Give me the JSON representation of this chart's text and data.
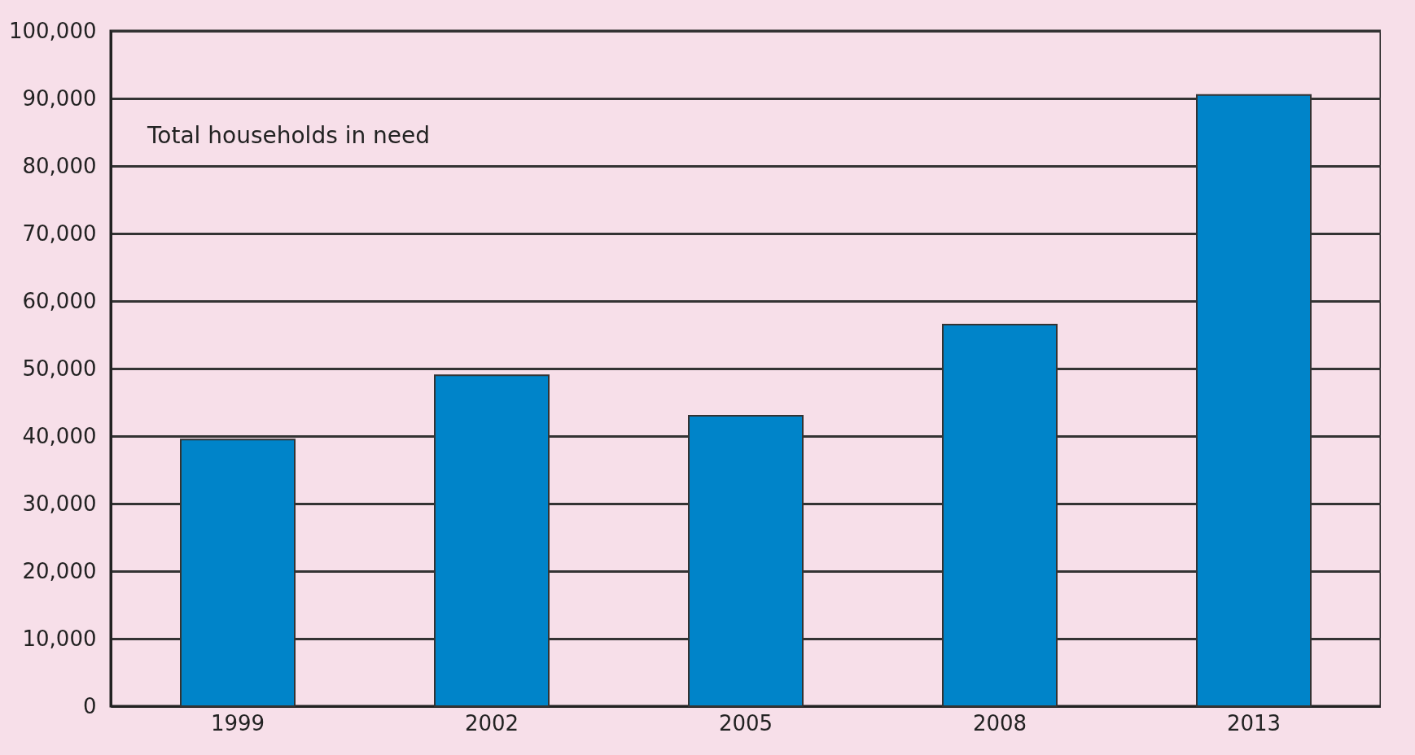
{
  "chart_data": {
    "type": "bar",
    "categories": [
      "1999",
      "2002",
      "2005",
      "2008",
      "2013"
    ],
    "values": [
      39500,
      49000,
      43000,
      56500,
      90500
    ],
    "color": "#0084c9",
    "ylim": [
      0,
      100000
    ],
    "yticks": [
      0,
      {
        "value": 10000,
        "label": "10,000"
      },
      {
        "value": 20000,
        "label": "20,000"
      },
      {
        "value": 30000,
        "label": "30,000"
      },
      {
        "value": 40000,
        "label": "40,000"
      },
      {
        "value": 50000,
        "label": "50,000"
      },
      {
        "value": 60000,
        "label": "60,000"
      },
      {
        "value": 70000,
        "label": "70,000"
      },
      {
        "value": 80000,
        "label": "80,000"
      },
      {
        "value": 90000,
        "label": "90,000"
      },
      {
        "value": 100000,
        "label": "100,000"
      }
    ],
    "grid": "y",
    "annotations": [
      "Total households in need"
    ]
  }
}
